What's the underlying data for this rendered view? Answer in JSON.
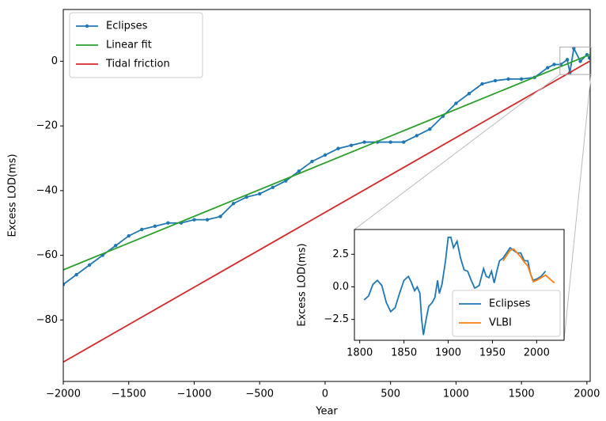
{
  "chart_data": [
    {
      "type": "line",
      "xlabel": "Year",
      "ylabel": "Excess LOD(ms)",
      "xlim": [
        -2000,
        2025
      ],
      "ylim": [
        -99,
        16
      ],
      "xticks": [
        {
          "value": -2000,
          "label": "−2000"
        },
        {
          "value": -1500,
          "label": "−1500"
        },
        {
          "value": -1000,
          "label": "−1000"
        },
        {
          "value": -500,
          "label": "−500"
        },
        0,
        500,
        1000,
        1500,
        2000
      ],
      "yticks": [
        {
          "value": -80,
          "label": "−80"
        },
        {
          "value": -60,
          "label": "−60"
        },
        {
          "value": -40,
          "label": "−40"
        },
        {
          "value": -20,
          "label": "−20"
        },
        0
      ],
      "legend": "upper left",
      "series": [
        {
          "name": "Eclipses",
          "color": "#1f77b4",
          "markers": true,
          "x": [
            -2000,
            -1900,
            -1800,
            -1700,
            -1600,
            -1500,
            -1400,
            -1300,
            -1200,
            -1100,
            -1000,
            -900,
            -800,
            -700,
            -600,
            -500,
            -400,
            -300,
            -200,
            -100,
            0,
            100,
            200,
            300,
            400,
            500,
            600,
            700,
            800,
            900,
            1000,
            1100,
            1200,
            1300,
            1400,
            1500,
            1600,
            1700,
            1750,
            1800,
            1850,
            1870,
            1900,
            1950,
            2000,
            2020
          ],
          "values": [
            -69,
            -66,
            -63,
            -60,
            -57,
            -54,
            -52,
            -51,
            -50,
            -50,
            -49,
            -49,
            -48,
            -44,
            -42,
            -41,
            -39,
            -37,
            -34,
            -31,
            -29,
            -27,
            -26,
            -25,
            -25,
            -25,
            -25,
            -23,
            -21,
            -17,
            -13,
            -10,
            -7,
            -6,
            -5.5,
            -5.5,
            -5,
            -2,
            -1,
            -1,
            0.5,
            -3.5,
            4,
            0,
            2,
            1
          ]
        },
        {
          "name": "Linear fit",
          "color": "#2ca02c",
          "markers": false,
          "x": [
            -2000,
            2020
          ],
          "values": [
            -64.5,
            2
          ]
        },
        {
          "name": "Tidal friction",
          "color": "#d62728",
          "markers": false,
          "x": [
            -2000,
            2020
          ],
          "values": [
            -93,
            0
          ]
        }
      ]
    },
    {
      "type": "line",
      "ylabel": "Excess LOD(ms)",
      "inset": true,
      "xlim": [
        1794,
        2031
      ],
      "ylim": [
        -4.1,
        4.4
      ],
      "xticks": [
        1800,
        1850,
        1900,
        1950,
        2000
      ],
      "yticks": [
        {
          "value": -2.5,
          "label": "−2.5"
        },
        {
          "value": 0,
          "label": "0.0"
        },
        2.5
      ],
      "legend": "lower right",
      "series": [
        {
          "name": "Eclipses",
          "color": "#1f77b4",
          "markers": false,
          "x": [
            1805,
            1810,
            1815,
            1820,
            1825,
            1830,
            1835,
            1840,
            1845,
            1850,
            1855,
            1858,
            1862,
            1865,
            1868,
            1870,
            1872,
            1875,
            1878,
            1882,
            1885,
            1888,
            1890,
            1893,
            1897,
            1900,
            1903,
            1906,
            1910,
            1914,
            1918,
            1922,
            1926,
            1930,
            1935,
            1940,
            1943,
            1946,
            1949,
            1952,
            1955,
            1958,
            1962,
            1966,
            1970,
            1974,
            1978,
            1982,
            1986,
            1990,
            1993,
            1996,
            2000,
            2005,
            2010
          ],
          "values": [
            -1,
            -0.7,
            0.2,
            0.5,
            0.1,
            -1.2,
            -1.9,
            -1.6,
            -0.5,
            0.5,
            0.8,
            0.4,
            -0.3,
            0,
            -0.5,
            -2.5,
            -3.7,
            -2.5,
            -1.5,
            -1.2,
            -0.8,
            0.5,
            -0.5,
            0.2,
            2,
            3.8,
            3.8,
            3,
            3.5,
            2.2,
            1.3,
            1.2,
            0.5,
            -0.1,
            0.1,
            1.4,
            0.8,
            0.7,
            1.2,
            0.3,
            1.2,
            2,
            2.2,
            2.6,
            3,
            2.8,
            2.6,
            2.6,
            2,
            2,
            1,
            0.5,
            0.6,
            0.8,
            1.2
          ]
        },
        {
          "name": "VLBI",
          "color": "#ff7f0e",
          "markers": false,
          "x": [
            1962,
            1966,
            1970,
            1974,
            1978,
            1982,
            1986,
            1990,
            1993,
            1996,
            2000,
            2005,
            2010,
            2015,
            2020
          ],
          "values": [
            2,
            2.4,
            2.8,
            2.9,
            2.6,
            2.3,
            1.9,
            1.6,
            1,
            0.4,
            0.5,
            0.7,
            0.9,
            0.6,
            0.3
          ]
        }
      ]
    }
  ]
}
